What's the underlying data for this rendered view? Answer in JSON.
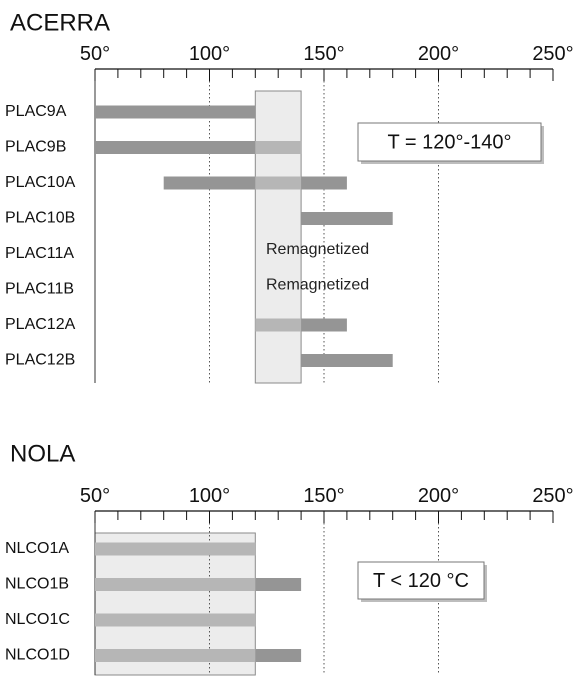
{
  "chart_data": [
    {
      "type": "bar",
      "orientation": "horizontal-range",
      "title": "ACERRA",
      "x_ticks": [
        "50°",
        "100°",
        "150°",
        "200°",
        "250°"
      ],
      "xlim": [
        50,
        250
      ],
      "highlight_range": [
        120,
        140
      ],
      "legend": "T = 120°-140°",
      "grid": "vertical dotted at 100, 150, 200",
      "rows": [
        {
          "label": "PLAC9A",
          "start": 50,
          "end": 120,
          "note": ""
        },
        {
          "label": "PLAC9B",
          "start": 50,
          "end": 140,
          "note": ""
        },
        {
          "label": "PLAC10A",
          "start": 80,
          "end": 160,
          "note": ""
        },
        {
          "label": "PLAC10B",
          "start": 140,
          "end": 180,
          "note": ""
        },
        {
          "label": "PLAC11A",
          "start": null,
          "end": null,
          "note": "Remagnetized"
        },
        {
          "label": "PLAC11B",
          "start": null,
          "end": null,
          "note": "Remagnetized"
        },
        {
          "label": "PLAC12A",
          "start": 120,
          "end": 160,
          "note": ""
        },
        {
          "label": "PLAC12B",
          "start": 140,
          "end": 180,
          "note": ""
        }
      ]
    },
    {
      "type": "bar",
      "orientation": "horizontal-range",
      "title": "NOLA",
      "x_ticks": [
        "50°",
        "100°",
        "150°",
        "200°",
        "250°"
      ],
      "xlim": [
        50,
        250
      ],
      "highlight_range": [
        50,
        120
      ],
      "legend": "T < 120 °C",
      "grid": "vertical dotted at 100, 150, 200",
      "rows": [
        {
          "label": "NLCO1A",
          "start": 50,
          "end": 120
        },
        {
          "label": "NLCO1B",
          "start": 50,
          "end": 140
        },
        {
          "label": "NLCO1C",
          "start": 50,
          "end": 120
        },
        {
          "label": "NLCO1D",
          "start": 50,
          "end": 140
        }
      ]
    }
  ],
  "colors": {
    "bar": "#959595",
    "bar_in_band": "#b6b6b6",
    "band_fill": "#ececec",
    "band_stroke": "#8a8a8a",
    "grid": "#555555"
  }
}
